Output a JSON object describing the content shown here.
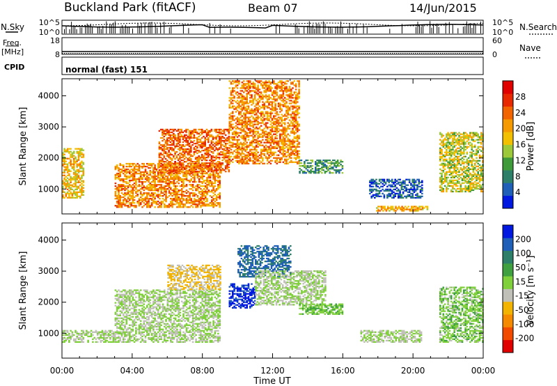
{
  "header": {
    "site": "Buckland Park (fitACF)",
    "beam": "Beam 07",
    "date": "14/Jun/2015"
  },
  "summary": {
    "nsky_label": "N.Sky",
    "nsky_ticks": [
      "10^5",
      "10^0"
    ],
    "nsearch_label": "N.Search",
    "nsearch_ticks": [
      "10^5",
      "10^0"
    ],
    "freq_label_line1": "Freq.",
    "freq_label_line2": "[MHz]",
    "freq_ticks": [
      "18",
      "8"
    ],
    "nave_label": "Nave",
    "nave_ticks": [
      "60",
      "0"
    ],
    "cpid_label": "CPID",
    "cpid_text": "normal (fast) 151"
  },
  "chart_data": [
    {
      "type": "heatmap",
      "parameter": "power",
      "ylabel": "Slant Range [km]",
      "xlabel": "",
      "y_ticks": [
        1000,
        2000,
        3000,
        4000
      ],
      "ylim": [
        200,
        4550
      ],
      "xlim": [
        0,
        24
      ],
      "colorbar": {
        "label": "Power [dB]",
        "ticks": [
          "4",
          "8",
          "12",
          "16",
          "20",
          "24",
          "28"
        ],
        "colors": [
          "#0018e0",
          "#1f5fb8",
          "#2e7f6a",
          "#3f9a3a",
          "#9cc93a",
          "#f2c000",
          "#f59a00",
          "#f26400",
          "#e82800",
          "#e00000"
        ]
      },
      "regions": [
        {
          "t0": 0.0,
          "t1": 1.2,
          "r0": 700,
          "r1": 2300,
          "value": 18
        },
        {
          "t0": 3.0,
          "t1": 9.0,
          "r0": 400,
          "r1": 1800,
          "value": 22
        },
        {
          "t0": 5.5,
          "t1": 9.5,
          "r0": 1500,
          "r1": 2900,
          "value": 24
        },
        {
          "t0": 9.5,
          "t1": 13.5,
          "r0": 1800,
          "r1": 4500,
          "value": 22
        },
        {
          "t0": 13.5,
          "t1": 16.0,
          "r0": 1500,
          "r1": 1950,
          "value": 10
        },
        {
          "t0": 17.5,
          "t1": 20.5,
          "r0": 700,
          "r1": 1300,
          "value": 5
        },
        {
          "t0": 17.8,
          "t1": 20.8,
          "r0": 280,
          "r1": 420,
          "value": 20
        },
        {
          "t0": 21.5,
          "t1": 24.0,
          "r0": 900,
          "r1": 2800,
          "value": 16
        }
      ]
    },
    {
      "type": "heatmap",
      "parameter": "velocity",
      "ylabel": "Slant Range [km]",
      "xlabel": "Time UT",
      "x_ticks": [
        "00:00",
        "04:00",
        "08:00",
        "12:00",
        "16:00",
        "20:00",
        "00:00"
      ],
      "y_ticks": [
        1000,
        2000,
        3000,
        4000
      ],
      "ylim": [
        200,
        4550
      ],
      "xlim": [
        0,
        24
      ],
      "colorbar": {
        "label": "Velocity [m s⁻¹]",
        "ticks": [
          "-200",
          "-100",
          "-50",
          "-15",
          "15",
          "50",
          "100",
          "200"
        ],
        "colors": [
          "#e00000",
          "#f24b00",
          "#f58a00",
          "#f2b400",
          "#c0c0b8",
          "#7fd03a",
          "#3fa040",
          "#2e7f6a",
          "#1f5fb8",
          "#0018e0"
        ]
      },
      "regions": [
        {
          "t0": 0.0,
          "t1": 3.0,
          "r0": 700,
          "r1": 1100,
          "value": 0
        },
        {
          "t0": 3.0,
          "t1": 9.0,
          "r0": 700,
          "r1": 2400,
          "value": 5
        },
        {
          "t0": 6.0,
          "t1": 9.0,
          "r0": 2400,
          "r1": 3200,
          "value": -60
        },
        {
          "t0": 9.5,
          "t1": 11.0,
          "r0": 1800,
          "r1": 2600,
          "value": 210
        },
        {
          "t0": 10.0,
          "t1": 13.0,
          "r0": 2800,
          "r1": 3800,
          "value": 160
        },
        {
          "t0": 11.0,
          "t1": 15.0,
          "r0": 1900,
          "r1": 3000,
          "value": 0
        },
        {
          "t0": 13.5,
          "t1": 16.0,
          "r0": 1600,
          "r1": 1950,
          "value": 40
        },
        {
          "t0": 17.0,
          "t1": 20.5,
          "r0": 700,
          "r1": 1100,
          "value": 0
        },
        {
          "t0": 21.5,
          "t1": 24.0,
          "r0": 700,
          "r1": 2500,
          "value": 30
        }
      ]
    }
  ]
}
